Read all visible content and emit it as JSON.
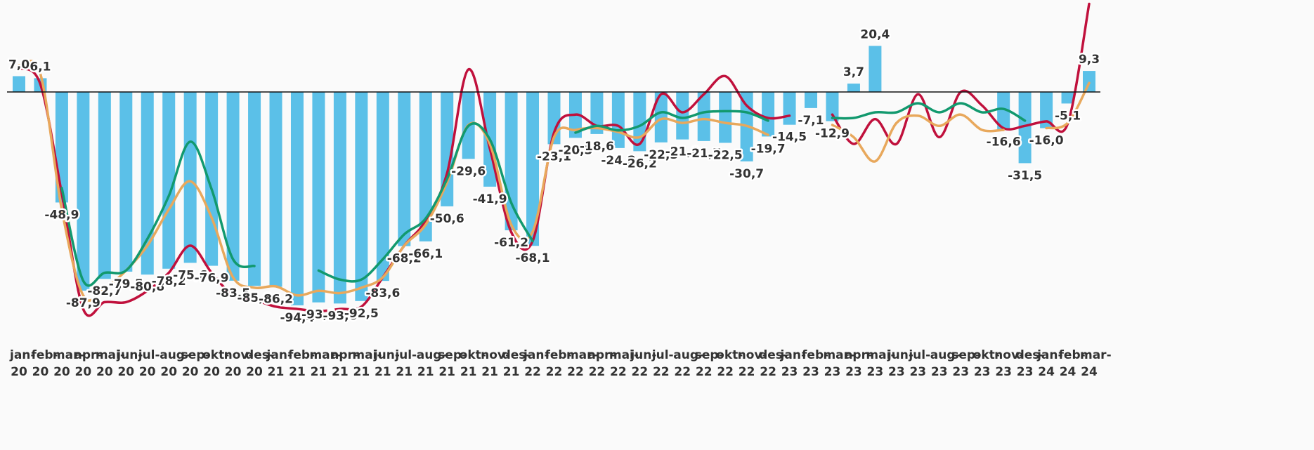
{
  "chart_data": {
    "type": "bar",
    "categories": [
      "jan-20",
      "feb-20",
      "mar-20",
      "apr-20",
      "mai-20",
      "jun-20",
      "jul-20",
      "aug-20",
      "sep-20",
      "okt-20",
      "nov-20",
      "des-20",
      "jan-21",
      "feb-21",
      "mar-21",
      "apr-21",
      "mai-21",
      "jun-21",
      "jul-21",
      "aug-21",
      "sep-21",
      "okt-21",
      "nov-21",
      "des-21",
      "jan-22",
      "feb-22",
      "mar-22",
      "apr-22",
      "mai-22",
      "jun-22",
      "jul-22",
      "aug-22",
      "sep-22",
      "okt-22",
      "nov-22",
      "des-22",
      "jan-23",
      "feb-23",
      "mar-23",
      "apr-23",
      "mai-23",
      "jun-23",
      "jul-23",
      "aug-23",
      "sep-23",
      "okt-23",
      "nov-23",
      "des-23",
      "jan-24",
      "feb-24",
      "mar-24"
    ],
    "ylim": [
      -105.3,
      40.7
    ],
    "series": [
      {
        "type": "bar",
        "color": "#5bc0e8",
        "values": [
          7.0,
          6.1,
          -48.9,
          -87.9,
          -82.7,
          -79.5,
          -80.8,
          -78.2,
          -75.6,
          -76.9,
          -83.5,
          -85.8,
          -86.2,
          -94.4,
          -93.1,
          -93.6,
          -92.5,
          -83.6,
          -68.2,
          -66.1,
          -50.6,
          -29.6,
          -41.9,
          -61.2,
          -68.1,
          -23.1,
          -20.3,
          -18.6,
          -24.8,
          -26.2,
          -22.3,
          -21.0,
          -21.7,
          -22.5,
          -30.7,
          -19.7,
          -14.5,
          -7.1,
          -12.9,
          3.7,
          20.4,
          null,
          null,
          null,
          null,
          null,
          -16.6,
          -31.5,
          -16.0,
          -5.1,
          9.3
        ],
        "value_labels": [
          "7,0",
          "6,1",
          "-48,9",
          "-87,9",
          "-82,7",
          "-79,5",
          "-80,8",
          "-78,2",
          "-75,6",
          "-76,9",
          "-83,5",
          "-85,8",
          "-86,2",
          "-94,4",
          "-93,1",
          "-93,6",
          "-92,5",
          "-83,6",
          "-68,2",
          "-66,1",
          "-50,6",
          "-29,6",
          "-41,9",
          "-61,2",
          "-68,1",
          "-23,1",
          "-20,3",
          "-18,6",
          "-24,8",
          "-26,2",
          "-22,3",
          "-21,0",
          "-21,7",
          "-22,5",
          "-30,7",
          "-19,7",
          "-14,5",
          "-7,1",
          "-12,9",
          "3,7",
          "20,4",
          null,
          null,
          null,
          null,
          null,
          "-16,6",
          "-31,5",
          "-16,0",
          "-5,1",
          "9,3"
        ]
      },
      {
        "type": "line",
        "color": "#c0103c",
        "values": [
          10.6,
          3.4,
          -45,
          -96,
          -93,
          -93,
          -88,
          -80,
          -68,
          -80,
          -90,
          -92,
          -95,
          -96,
          -97,
          -96,
          -95,
          -82,
          -68,
          -57,
          -36,
          10,
          -25,
          -62,
          -66,
          -18,
          -10,
          -15,
          -15,
          -23,
          -1,
          -9,
          -1,
          7,
          -6,
          -11.5,
          -10.5,
          null,
          -10,
          -23,
          -12,
          -23,
          -1,
          -20,
          0,
          -6,
          -16,
          -15,
          -13,
          -14,
          39
        ]
      },
      {
        "type": "line",
        "color": "#e8a85c",
        "values": [
          11.8,
          8,
          -52,
          -90,
          -87,
          -79,
          -68,
          -52,
          -39.5,
          -55.6,
          -82,
          -86.6,
          -86,
          -90,
          -88,
          -89,
          -86.6,
          -82,
          -68,
          -58.7,
          -40,
          -14.6,
          -23,
          -58.7,
          -61.8,
          -20,
          -16.8,
          -16,
          -17.7,
          -20,
          -12,
          -13.7,
          -12,
          -13.7,
          -15,
          -19,
          null,
          null,
          -14.6,
          -20,
          -30.7,
          -13.7,
          -10.5,
          -15,
          -10,
          -16.8,
          -16.8,
          null,
          -16,
          -13.7,
          4
        ]
      },
      {
        "type": "line",
        "color": "#12996e",
        "values": [
          null,
          null,
          -42.5,
          -83.5,
          -80,
          -79,
          -65,
          -46,
          -22,
          -43,
          -74,
          -77,
          null,
          null,
          -79,
          -83,
          -83,
          -74,
          -63,
          -56,
          -38.5,
          -15,
          -21,
          -49,
          -66,
          null,
          -18,
          -15,
          -17,
          -15,
          -9,
          -11.5,
          -9,
          -8.5,
          -9,
          -12.7,
          null,
          null,
          -11.5,
          -11.5,
          -9,
          -9,
          -5,
          -9,
          -5,
          -9,
          -7.5,
          -12.7,
          null,
          null,
          null
        ]
      }
    ]
  }
}
